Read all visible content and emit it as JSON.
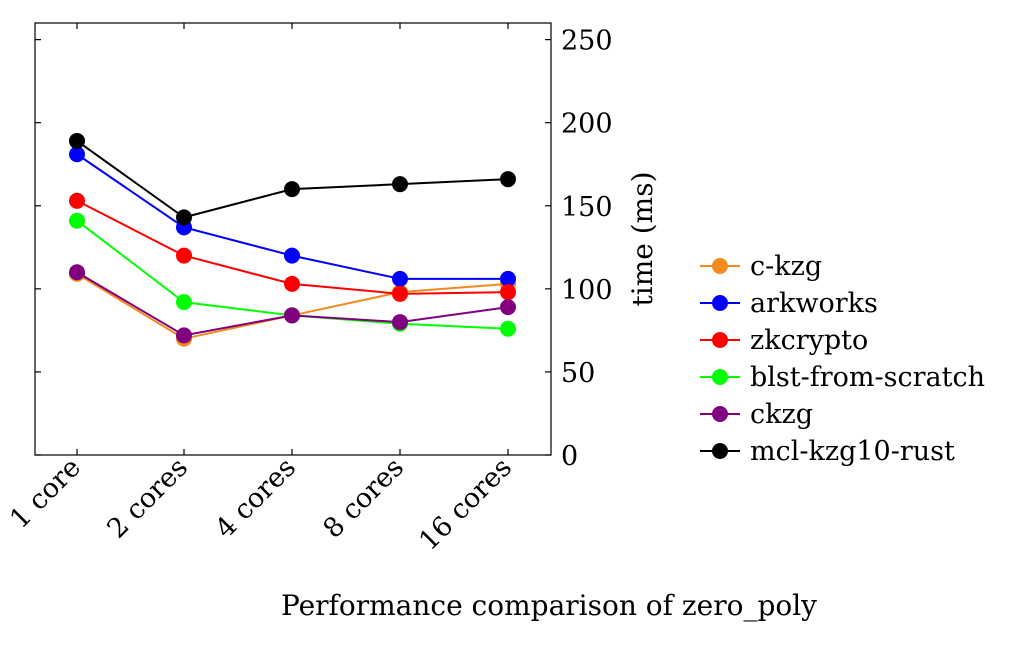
{
  "chart_data": {
    "type": "line",
    "title": "Performance comparison of zero_poly",
    "xlabel": "",
    "ylabel": "time (ms)",
    "categories": [
      "1 core",
      "2 cores",
      "4 cores",
      "8 cores",
      "16 cores"
    ],
    "ylim": [
      0,
      260
    ],
    "yticks": [
      0,
      50,
      100,
      150,
      200,
      250
    ],
    "y_axis_side": "right",
    "grid": false,
    "legend_position": "right",
    "series": [
      {
        "name": "c-kzg",
        "color": "#f28a1e",
        "values": [
          109,
          70,
          84,
          98,
          103
        ]
      },
      {
        "name": "arkworks",
        "color": "#0000ff",
        "values": [
          181,
          137,
          120,
          106,
          106
        ]
      },
      {
        "name": "zkcrypto",
        "color": "#ff0000",
        "values": [
          153,
          120,
          103,
          97,
          98
        ]
      },
      {
        "name": "blst-from-scratch",
        "color": "#00ff00",
        "values": [
          141,
          92,
          84,
          79,
          76
        ]
      },
      {
        "name": "ckzg",
        "color": "#800080",
        "values": [
          110,
          72,
          84,
          80,
          89
        ]
      },
      {
        "name": "mcl-kzg10-rust",
        "color": "#000000",
        "values": [
          189,
          143,
          160,
          163,
          166
        ]
      }
    ]
  }
}
